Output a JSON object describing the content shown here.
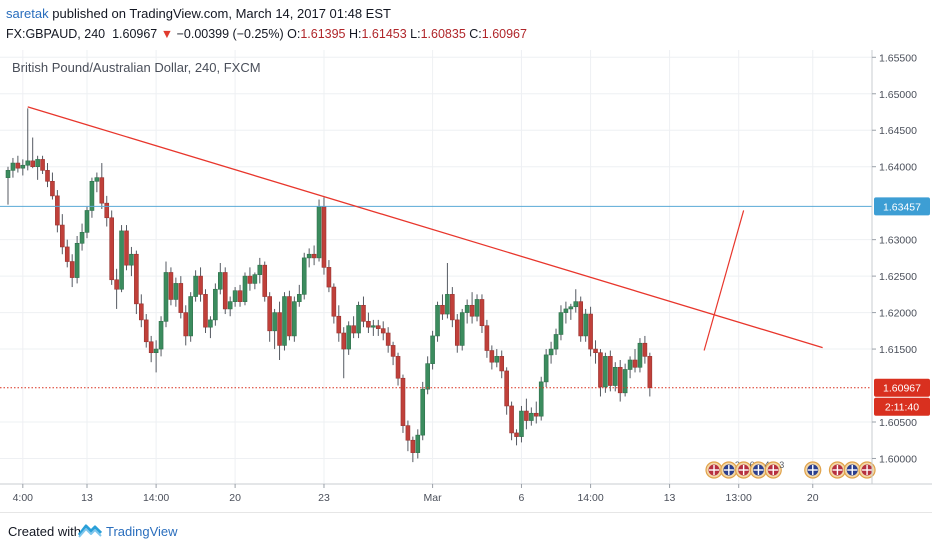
{
  "header": {
    "publisher": "saretak",
    "published_text": "published on TradingView.com, March 14, 2017 01:48 EST",
    "symbol": "FX:GBPAUD, 240",
    "last": "1.60967",
    "change_arrow": "▼",
    "change": "−0.00399 (−0.25%)",
    "open_label": "O:",
    "open": "1.61395",
    "high_label": "H:",
    "high": "1.61453",
    "low_label": "L:",
    "low": "1.60835",
    "close_label": "C:",
    "close": "1.60967"
  },
  "footer": {
    "created_with": "Created with",
    "brand": "TradingView"
  },
  "colors": {
    "up": "#3b8c5e",
    "down": "#c0403a",
    "trend": "#e8362c",
    "horizontal": "#5aa9d6",
    "price_line": "#d9301f",
    "grid": "#eef0f3"
  },
  "chart_data": {
    "type": "candlestick",
    "title": "British Pound/Australian Dollar, 240, FXCM",
    "ylim": [
      1.5965,
      1.656
    ],
    "y_ticks": [
      "1.60000",
      "1.60500",
      "1.61500",
      "1.62000",
      "1.62500",
      "1.63000",
      "1.64000",
      "1.64500",
      "1.65000",
      "1.65500"
    ],
    "x_ticks": [
      {
        "label": "4:00",
        "x": 3
      },
      {
        "label": "13",
        "x": 16
      },
      {
        "label": "14:00",
        "x": 30
      },
      {
        "label": "20",
        "x": 46
      },
      {
        "label": "23",
        "x": 64
      },
      {
        "label": "Mar",
        "x": 86
      },
      {
        "label": "6",
        "x": 104
      },
      {
        "label": "14:00",
        "x": 118
      },
      {
        "label": "13",
        "x": 134
      },
      {
        "label": "13:00",
        "x": 148
      },
      {
        "label": "20",
        "x": 163
      }
    ],
    "x_range": [
      0,
      175
    ],
    "grid": true,
    "candles": [
      [
        1.6385,
        1.64,
        1.6348,
        1.6395
      ],
      [
        1.6395,
        1.6412,
        1.6385,
        1.6405
      ],
      [
        1.6405,
        1.6415,
        1.6392,
        1.6398
      ],
      [
        1.6398,
        1.641,
        1.6388,
        1.6402
      ],
      [
        1.6402,
        1.648,
        1.6395,
        1.6408
      ],
      [
        1.6408,
        1.644,
        1.6398,
        1.64
      ],
      [
        1.64,
        1.6415,
        1.6382,
        1.641
      ],
      [
        1.641,
        1.6415,
        1.639,
        1.6395
      ],
      [
        1.6395,
        1.6405,
        1.6372,
        1.638
      ],
      [
        1.638,
        1.6392,
        1.6355,
        1.636
      ],
      [
        1.636,
        1.6368,
        1.631,
        1.632
      ],
      [
        1.632,
        1.6335,
        1.628,
        1.629
      ],
      [
        1.629,
        1.63,
        1.6262,
        1.627
      ],
      [
        1.627,
        1.628,
        1.6235,
        1.6248
      ],
      [
        1.6248,
        1.6305,
        1.624,
        1.6295
      ],
      [
        1.6295,
        1.6322,
        1.6285,
        1.631
      ],
      [
        1.631,
        1.6345,
        1.6302,
        1.634
      ],
      [
        1.634,
        1.6385,
        1.633,
        1.638
      ],
      [
        1.638,
        1.6392,
        1.6365,
        1.6385
      ],
      [
        1.6385,
        1.6405,
        1.6342,
        1.635
      ],
      [
        1.635,
        1.636,
        1.6318,
        1.633
      ],
      [
        1.633,
        1.634,
        1.6238,
        1.6245
      ],
      [
        1.6245,
        1.626,
        1.6205,
        1.6232
      ],
      [
        1.6232,
        1.632,
        1.6228,
        1.6312
      ],
      [
        1.6312,
        1.632,
        1.6258,
        1.6265
      ],
      [
        1.6265,
        1.629,
        1.625,
        1.628
      ],
      [
        1.628,
        1.6285,
        1.6198,
        1.6212
      ],
      [
        1.6212,
        1.6225,
        1.618,
        1.619
      ],
      [
        1.619,
        1.6198,
        1.6152,
        1.616
      ],
      [
        1.616,
        1.6168,
        1.6132,
        1.6145
      ],
      [
        1.6145,
        1.6162,
        1.6118,
        1.615
      ],
      [
        1.615,
        1.6195,
        1.614,
        1.6188
      ],
      [
        1.6188,
        1.627,
        1.618,
        1.6255
      ],
      [
        1.6255,
        1.6262,
        1.621,
        1.6218
      ],
      [
        1.6218,
        1.6248,
        1.6208,
        1.624
      ],
      [
        1.624,
        1.625,
        1.6192,
        1.62
      ],
      [
        1.62,
        1.621,
        1.6155,
        1.6168
      ],
      [
        1.6168,
        1.6228,
        1.616,
        1.6222
      ],
      [
        1.6222,
        1.6258,
        1.6215,
        1.625
      ],
      [
        1.625,
        1.6262,
        1.6215,
        1.6225
      ],
      [
        1.6225,
        1.6232,
        1.6172,
        1.618
      ],
      [
        1.618,
        1.6195,
        1.6165,
        1.619
      ],
      [
        1.619,
        1.624,
        1.6182,
        1.6232
      ],
      [
        1.6232,
        1.6268,
        1.6225,
        1.6255
      ],
      [
        1.6255,
        1.6262,
        1.6198,
        1.6205
      ],
      [
        1.6205,
        1.6222,
        1.6195,
        1.6215
      ],
      [
        1.6215,
        1.6235,
        1.6208,
        1.623
      ],
      [
        1.623,
        1.6238,
        1.6208,
        1.6215
      ],
      [
        1.6215,
        1.6255,
        1.621,
        1.625
      ],
      [
        1.625,
        1.6262,
        1.623,
        1.624
      ],
      [
        1.624,
        1.6255,
        1.6232,
        1.6252
      ],
      [
        1.6252,
        1.6275,
        1.624,
        1.6265
      ],
      [
        1.6265,
        1.627,
        1.6215,
        1.6222
      ],
      [
        1.6222,
        1.6228,
        1.616,
        1.6175
      ],
      [
        1.6175,
        1.6205,
        1.615,
        1.62
      ],
      [
        1.62,
        1.6215,
        1.6135,
        1.6155
      ],
      [
        1.6155,
        1.6228,
        1.6148,
        1.6222
      ],
      [
        1.6222,
        1.623,
        1.6162,
        1.6168
      ],
      [
        1.6168,
        1.6222,
        1.616,
        1.6215
      ],
      [
        1.6215,
        1.6238,
        1.6208,
        1.6225
      ],
      [
        1.6225,
        1.6282,
        1.6218,
        1.6275
      ],
      [
        1.6275,
        1.6288,
        1.6262,
        1.628
      ],
      [
        1.628,
        1.6292,
        1.6265,
        1.6275
      ],
      [
        1.6275,
        1.6355,
        1.627,
        1.6345
      ],
      [
        1.6345,
        1.6358,
        1.6252,
        1.6262
      ],
      [
        1.6262,
        1.6272,
        1.6228,
        1.6235
      ],
      [
        1.6235,
        1.624,
        1.6185,
        1.6195
      ],
      [
        1.6195,
        1.621,
        1.616,
        1.6172
      ],
      [
        1.6172,
        1.618,
        1.611,
        1.615
      ],
      [
        1.615,
        1.6188,
        1.6142,
        1.6182
      ],
      [
        1.6182,
        1.6195,
        1.6165,
        1.6172
      ],
      [
        1.6172,
        1.6215,
        1.6165,
        1.621
      ],
      [
        1.621,
        1.6222,
        1.618,
        1.6188
      ],
      [
        1.6188,
        1.62,
        1.6172,
        1.618
      ],
      [
        1.618,
        1.619,
        1.6168,
        1.6182
      ],
      [
        1.6182,
        1.619,
        1.6168,
        1.6178
      ],
      [
        1.6178,
        1.6188,
        1.6162,
        1.6172
      ],
      [
        1.6172,
        1.618,
        1.6145,
        1.6155
      ],
      [
        1.6155,
        1.616,
        1.6128,
        1.614
      ],
      [
        1.614,
        1.6145,
        1.61,
        1.611
      ],
      [
        1.611,
        1.6115,
        1.6035,
        1.6045
      ],
      [
        1.6045,
        1.6052,
        1.601,
        1.6025
      ],
      [
        1.6025,
        1.603,
        1.5995,
        1.6008
      ],
      [
        1.6008,
        1.604,
        1.6,
        1.6032
      ],
      [
        1.6032,
        1.6105,
        1.6025,
        1.6095
      ],
      [
        1.6095,
        1.614,
        1.6088,
        1.613
      ],
      [
        1.613,
        1.6175,
        1.6122,
        1.6168
      ],
      [
        1.6168,
        1.6215,
        1.616,
        1.621
      ],
      [
        1.621,
        1.6225,
        1.619,
        1.6198
      ],
      [
        1.6198,
        1.6268,
        1.6192,
        1.6225
      ],
      [
        1.6225,
        1.6235,
        1.618,
        1.619
      ],
      [
        1.619,
        1.6198,
        1.6145,
        1.6155
      ],
      [
        1.6155,
        1.6205,
        1.6148,
        1.62
      ],
      [
        1.62,
        1.6218,
        1.6185,
        1.621
      ],
      [
        1.621,
        1.6228,
        1.6185,
        1.6195
      ],
      [
        1.6195,
        1.6225,
        1.6188,
        1.6218
      ],
      [
        1.6218,
        1.6225,
        1.6172,
        1.6182
      ],
      [
        1.6182,
        1.619,
        1.6138,
        1.6148
      ],
      [
        1.6148,
        1.6155,
        1.6122,
        1.6132
      ],
      [
        1.6132,
        1.615,
        1.6125,
        1.614
      ],
      [
        1.614,
        1.6148,
        1.611,
        1.612
      ],
      [
        1.612,
        1.6125,
        1.606,
        1.6072
      ],
      [
        1.6072,
        1.6078,
        1.6025,
        1.6035
      ],
      [
        1.6035,
        1.604,
        1.6018,
        1.603
      ],
      [
        1.603,
        1.6072,
        1.6022,
        1.6065
      ],
      [
        1.6065,
        1.6082,
        1.604,
        1.6052
      ],
      [
        1.6052,
        1.607,
        1.6045,
        1.6062
      ],
      [
        1.6062,
        1.6078,
        1.6048,
        1.6058
      ],
      [
        1.6058,
        1.6112,
        1.6052,
        1.6105
      ],
      [
        1.6105,
        1.615,
        1.6098,
        1.6142
      ],
      [
        1.6142,
        1.616,
        1.613,
        1.615
      ],
      [
        1.615,
        1.6178,
        1.6142,
        1.617
      ],
      [
        1.617,
        1.621,
        1.6162,
        1.62
      ],
      [
        1.62,
        1.6215,
        1.6185,
        1.6205
      ],
      [
        1.6205,
        1.6212,
        1.619,
        1.6208
      ],
      [
        1.6208,
        1.6232,
        1.62,
        1.6215
      ],
      [
        1.6215,
        1.6222,
        1.616,
        1.6168
      ],
      [
        1.6168,
        1.6205,
        1.616,
        1.6198
      ],
      [
        1.6198,
        1.6208,
        1.614,
        1.615
      ],
      [
        1.615,
        1.6162,
        1.613,
        1.6145
      ],
      [
        1.6145,
        1.615,
        1.6085,
        1.6098
      ],
      [
        1.6098,
        1.6145,
        1.609,
        1.614
      ],
      [
        1.614,
        1.6148,
        1.6092,
        1.61
      ],
      [
        1.61,
        1.6132,
        1.6092,
        1.6125
      ],
      [
        1.6125,
        1.6135,
        1.6078,
        1.609
      ],
      [
        1.609,
        1.613,
        1.6085,
        1.6122
      ],
      [
        1.6122,
        1.614,
        1.611,
        1.6135
      ],
      [
        1.6135,
        1.615,
        1.6118,
        1.6125
      ],
      [
        1.6125,
        1.6165,
        1.6118,
        1.6158
      ],
      [
        1.6158,
        1.6168,
        1.613,
        1.614
      ],
      [
        1.614,
        1.6145,
        1.6085,
        1.6097
      ]
    ],
    "lines": {
      "trendline": {
        "from": [
          4,
          1.6482
        ],
        "to": [
          165,
          1.6152
        ]
      },
      "horizontal": {
        "y": 1.63457
      },
      "projection": {
        "from": [
          141,
          1.6148
        ],
        "to": [
          149,
          1.634
        ]
      }
    },
    "labels": {
      "horizontal_label": "1.63457",
      "last_price_label": "1.60967",
      "countdown_label": "2:11:40"
    },
    "events": [
      {
        "x": 143,
        "text": ""
      },
      {
        "x": 146,
        "text": "2"
      },
      {
        "x": 149,
        "text": "6"
      },
      {
        "x": 152,
        "text": "4"
      },
      {
        "x": 155,
        "text": "3"
      },
      {
        "x": 163,
        "text": ""
      },
      {
        "x": 168,
        "text": ""
      },
      {
        "x": 171,
        "text": ""
      },
      {
        "x": 174,
        "text": ""
      }
    ]
  }
}
